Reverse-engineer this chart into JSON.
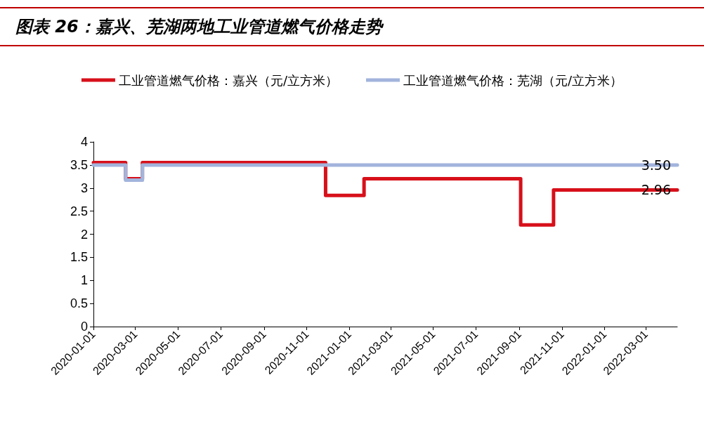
{
  "chart_data": {
    "type": "step",
    "title": "图表 26：嘉兴、芜湖两地工业管道燃气价格走势",
    "series": [
      {
        "name": "工业管道燃气价格：嘉兴（元/立方米）",
        "color": "#d7101a",
        "x": [
          "2020-01-01",
          "2020-02-16",
          "2020-03-11",
          "2020-11-28",
          "2021-01-22",
          "2021-09-03",
          "2021-10-20",
          "2022-04-15"
        ],
        "values": [
          3.55,
          3.2,
          3.55,
          2.84,
          3.2,
          2.2,
          2.96,
          2.96
        ],
        "value_labels": [
          null,
          null,
          null,
          null,
          null,
          null,
          null,
          "2.96"
        ]
      },
      {
        "name": "工业管道燃气价格：芜湖（元/立方米）",
        "color": "#a2b4dc",
        "x": [
          "2020-01-01",
          "2020-02-16",
          "2020-03-11",
          "2022-04-15"
        ],
        "values": [
          3.5,
          3.17,
          3.5,
          3.5
        ],
        "value_labels": [
          null,
          null,
          null,
          "3.50"
        ]
      }
    ],
    "xlim": [
      "2020-01-01",
      "2022-04-15"
    ],
    "xticks": [
      "2020-01-01",
      "2020-03-01",
      "2020-05-01",
      "2020-07-01",
      "2020-09-01",
      "2020-11-01",
      "2021-01-01",
      "2021-03-01",
      "2021-05-01",
      "2021-07-01",
      "2021-09-01",
      "2021-11-01",
      "2022-01-01",
      "2022-03-01"
    ],
    "ylim": [
      0,
      4
    ],
    "yticks": [
      0,
      0.5,
      1,
      1.5,
      2,
      2.5,
      3,
      3.5,
      4
    ],
    "grid": false,
    "legend": "top",
    "marker": "none",
    "line_style": "solid"
  }
}
